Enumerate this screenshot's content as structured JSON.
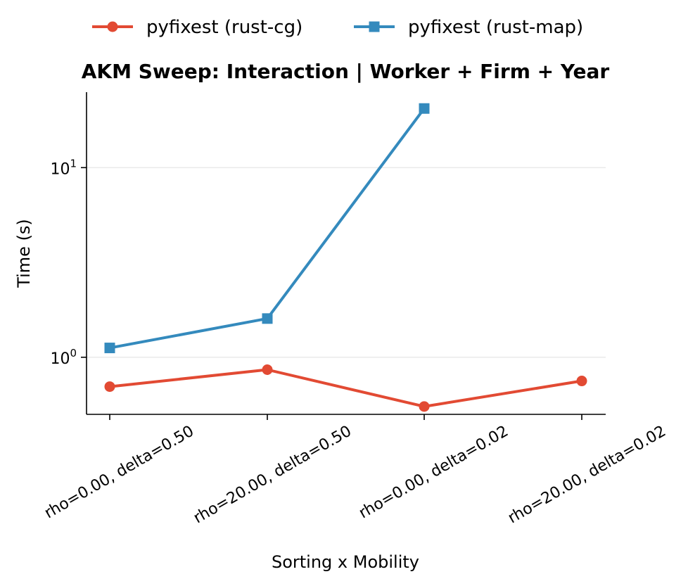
{
  "chart_data": {
    "type": "line",
    "title": "AKM Sweep: Interaction  |  Worker + Firm + Year",
    "xlabel": "Sorting x Mobility",
    "ylabel": "Time (s)",
    "yscale": "log",
    "ylim": [
      0.5,
      25
    ],
    "grid": "horizontal",
    "legend_position": "top-center",
    "categories": [
      "rho=0.00, delta=0.50",
      "rho=20.00, delta=0.50",
      "rho=0.00, delta=0.02",
      "rho=20.00, delta=0.02"
    ],
    "y_ticks": [
      {
        "value": 1,
        "base": "10",
        "exp": "0"
      },
      {
        "value": 10,
        "base": "10",
        "exp": "1"
      }
    ],
    "series": [
      {
        "name": "pyfixest (rust-cg)",
        "color": "#e24a33",
        "marker": "circle",
        "values": [
          0.7,
          0.86,
          0.55,
          0.75
        ]
      },
      {
        "name": "pyfixest (rust-map)",
        "color": "#348abd",
        "marker": "square",
        "values": [
          1.12,
          1.6,
          20.5,
          null
        ]
      }
    ]
  }
}
